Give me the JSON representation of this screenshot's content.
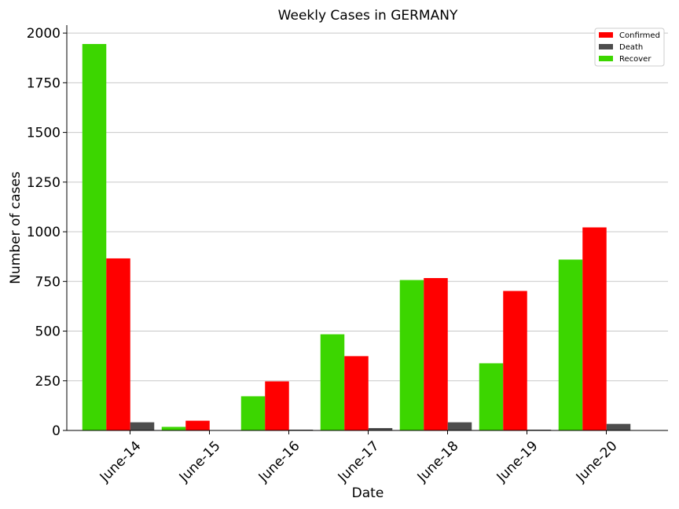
{
  "chart_data": {
    "type": "bar",
    "title": "Weekly Cases in GERMANY",
    "xlabel": "Date",
    "ylabel": "Number of cases",
    "categories": [
      "June-14",
      "June-15",
      "June-16",
      "June-17",
      "June-18",
      "June-19",
      "June-20"
    ],
    "series": [
      {
        "name": "Recover",
        "color": "#3cd600",
        "values": [
          1945,
          18,
          172,
          484,
          757,
          338,
          860
        ]
      },
      {
        "name": "Confirmed",
        "color": "#ff0000",
        "values": [
          866,
          49,
          247,
          374,
          767,
          702,
          1022
        ]
      },
      {
        "name": "Death",
        "color": "#4d4d4d",
        "values": [
          41,
          0,
          4,
          12,
          41,
          4,
          33
        ]
      }
    ],
    "legend_order": [
      "Confirmed",
      "Death",
      "Recover"
    ],
    "legend_position": "top-right",
    "yticks": [
      0,
      250,
      500,
      750,
      1000,
      1250,
      1500,
      1750,
      2000
    ],
    "ylim": [
      0,
      2040
    ],
    "grid": "y"
  }
}
